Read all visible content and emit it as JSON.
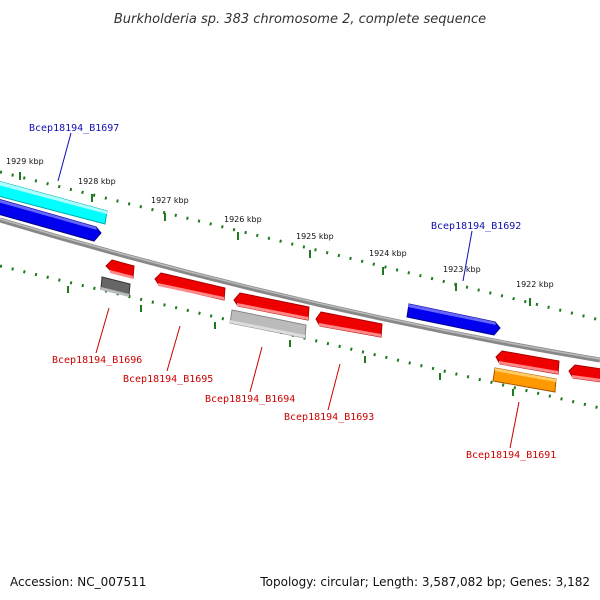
{
  "title": "Burkholderia sp. 383 chromosome 2, complete sequence",
  "footer": {
    "accession": "Accession: NC_007511",
    "topology": "Topology: circular; Length: 3,587,082 bp; Genes: 3,182"
  },
  "kbp_labels": [
    "1929 kbp",
    "1928 kbp",
    "1927 kbp",
    "1926 kbp",
    "1925 kbp",
    "1924 kbp",
    "1923 kbp",
    "1922 kbp"
  ],
  "gene_labels_top": [
    "Bcep18194_B1697",
    "Bcep18194_B1692"
  ],
  "gene_labels_bottom": [
    "Bcep18194_B1696",
    "Bcep18194_B1695",
    "Bcep18194_B1694",
    "Bcep18194_B1693",
    "Bcep18194_B1691"
  ],
  "colors": {
    "backbone": "#808080",
    "tick": "#1e7a1e",
    "gene_red": "#ff0000",
    "gene_blue": "#0000ee",
    "gene_cyan": "#00ffff",
    "gene_gray_dark": "#666666",
    "gene_gray_light": "#bbbbbb",
    "gene_orange": "#ff9900"
  }
}
